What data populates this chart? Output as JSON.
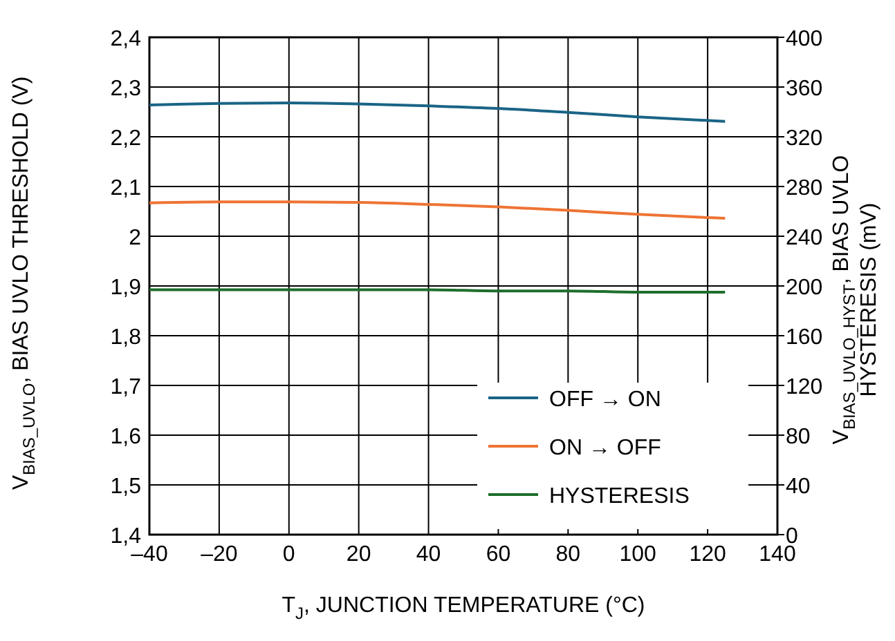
{
  "chart_data": {
    "type": "line",
    "xlabel": "T$_{J}$, JUNCTION TEMPERATURE (°C)",
    "ylabel": "V$_{BIAS_UVLO}$, BIAS UVLO THRESHOLD (V)",
    "y2label": "V$_{BIAS_UVLO_HYST}$, BIAS UVLO\nHYSTERESIS (mV)",
    "x": [
      -40,
      -20,
      0,
      20,
      40,
      60,
      80,
      100,
      125
    ],
    "series": [
      {
        "name": "OFF → ON",
        "color": "#1a6487",
        "values": [
          2.264,
          2.267,
          2.268,
          2.266,
          2.262,
          2.257,
          2.249,
          2.24,
          2.231
        ]
      },
      {
        "name": "ON → OFF",
        "color": "#ee7434",
        "values": [
          2.067,
          2.069,
          2.069,
          2.068,
          2.064,
          2.059,
          2.052,
          2.044,
          2.036
        ]
      },
      {
        "name": "HYSTERESIS",
        "color": "#1e6e2c",
        "axis": "y2",
        "values": [
          197,
          197,
          197,
          197,
          197,
          196,
          196,
          195,
          195
        ]
      }
    ],
    "xlim": [
      -40,
      140
    ],
    "xticks": [
      {
        "value": -40,
        "label": "–40"
      },
      {
        "value": -20,
        "label": "–20"
      },
      0,
      20,
      40,
      60,
      80,
      100,
      120,
      140
    ],
    "ylim": [
      1.4,
      2.4
    ],
    "yticks": [
      {
        "value": 1.4,
        "label": "1,4"
      },
      {
        "value": 1.5,
        "label": "1,5"
      },
      {
        "value": 1.6,
        "label": "1,6"
      },
      {
        "value": 1.7,
        "label": "1,7"
      },
      {
        "value": 1.8,
        "label": "1,8"
      },
      {
        "value": 1.9,
        "label": "1,9"
      },
      2,
      {
        "value": 2.1,
        "label": "2,1"
      },
      {
        "value": 2.2,
        "label": "2,2"
      },
      {
        "value": 2.3,
        "label": "2,3"
      },
      {
        "value": 2.4,
        "label": "2,4"
      }
    ],
    "y2lim": [
      0,
      400
    ],
    "y2ticks": [
      0,
      40,
      80,
      120,
      160,
      200,
      240,
      280,
      320,
      360,
      400
    ],
    "grid": true,
    "legend": "bottom right",
    "line_style": "solid"
  }
}
